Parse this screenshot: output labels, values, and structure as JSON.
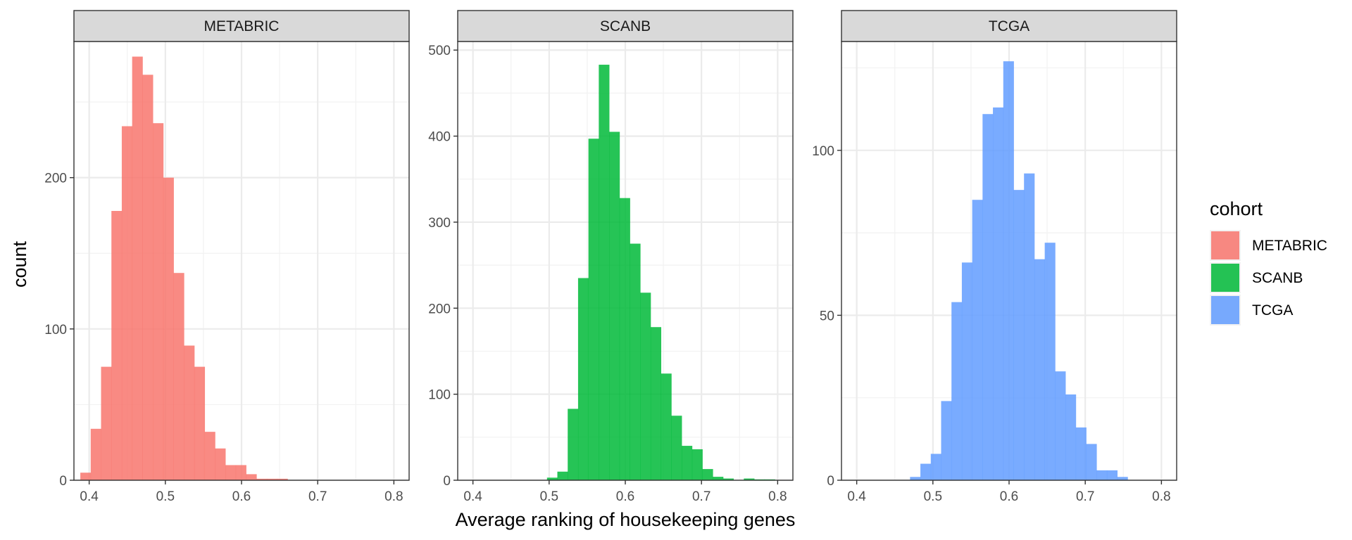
{
  "chart_data": {
    "type": "bar",
    "xlabel": "Average ranking of housekeeping genes",
    "ylabel": "count",
    "xlim": [
      0.38,
      0.82
    ],
    "x_ticks": [
      0.4,
      0.5,
      0.6,
      0.7,
      0.8
    ],
    "x_tick_labels": [
      "0.4",
      "0.5",
      "0.6",
      "0.7",
      "0.8"
    ],
    "bin_width": 0.0136,
    "grid": true,
    "legend": {
      "title": "cohort",
      "position": "right",
      "entries": [
        {
          "label": "METABRIC",
          "color": "#F8766D"
        },
        {
          "label": "SCANB",
          "color": "#00BA38"
        },
        {
          "label": "TCGA",
          "color": "#619CFF"
        }
      ]
    },
    "panels": [
      {
        "name": "METABRIC",
        "color": "#F8766D",
        "ylim": [
          0,
          290
        ],
        "y_ticks": [
          0,
          100,
          200
        ],
        "y_tick_labels": [
          "0",
          "100",
          "200"
        ],
        "bins": [
          {
            "x0": 0.3884,
            "count": 5
          },
          {
            "x0": 0.402,
            "count": 34
          },
          {
            "x0": 0.4156,
            "count": 75
          },
          {
            "x0": 0.4292,
            "count": 178
          },
          {
            "x0": 0.4428,
            "count": 234
          },
          {
            "x0": 0.4564,
            "count": 280
          },
          {
            "x0": 0.47,
            "count": 268
          },
          {
            "x0": 0.4836,
            "count": 236
          },
          {
            "x0": 0.4972,
            "count": 200
          },
          {
            "x0": 0.5108,
            "count": 137
          },
          {
            "x0": 0.5244,
            "count": 89
          },
          {
            "x0": 0.538,
            "count": 75
          },
          {
            "x0": 0.5516,
            "count": 32
          },
          {
            "x0": 0.5652,
            "count": 21
          },
          {
            "x0": 0.5788,
            "count": 10
          },
          {
            "x0": 0.5924,
            "count": 10
          },
          {
            "x0": 0.606,
            "count": 4
          },
          {
            "x0": 0.6196,
            "count": 1
          },
          {
            "x0": 0.6332,
            "count": 1
          },
          {
            "x0": 0.6468,
            "count": 1
          }
        ]
      },
      {
        "name": "SCANB",
        "color": "#00BA38",
        "ylim": [
          0,
          510
        ],
        "y_ticks": [
          0,
          100,
          200,
          300,
          400,
          500
        ],
        "y_tick_labels": [
          "0",
          "100",
          "200",
          "300",
          "400",
          "500"
        ],
        "bins": [
          {
            "x0": 0.4972,
            "count": 3
          },
          {
            "x0": 0.5108,
            "count": 10
          },
          {
            "x0": 0.5244,
            "count": 83
          },
          {
            "x0": 0.538,
            "count": 235
          },
          {
            "x0": 0.5516,
            "count": 397
          },
          {
            "x0": 0.5652,
            "count": 483
          },
          {
            "x0": 0.5788,
            "count": 405
          },
          {
            "x0": 0.5924,
            "count": 328
          },
          {
            "x0": 0.606,
            "count": 275
          },
          {
            "x0": 0.6196,
            "count": 218
          },
          {
            "x0": 0.6332,
            "count": 178
          },
          {
            "x0": 0.6468,
            "count": 124
          },
          {
            "x0": 0.6604,
            "count": 75
          },
          {
            "x0": 0.674,
            "count": 40
          },
          {
            "x0": 0.6876,
            "count": 36
          },
          {
            "x0": 0.7012,
            "count": 13
          },
          {
            "x0": 0.7148,
            "count": 4
          },
          {
            "x0": 0.7284,
            "count": 2
          },
          {
            "x0": 0.742,
            "count": 0
          },
          {
            "x0": 0.7556,
            "count": 2
          },
          {
            "x0": 0.7692,
            "count": 1
          },
          {
            "x0": 0.7828,
            "count": 1
          }
        ]
      },
      {
        "name": "TCGA",
        "color": "#619CFF",
        "ylim": [
          0,
          133
        ],
        "y_ticks": [
          0,
          50,
          100
        ],
        "y_tick_labels": [
          "0",
          "50",
          "100"
        ],
        "bins": [
          {
            "x0": 0.47,
            "count": 1
          },
          {
            "x0": 0.4836,
            "count": 5
          },
          {
            "x0": 0.4972,
            "count": 8
          },
          {
            "x0": 0.5108,
            "count": 24
          },
          {
            "x0": 0.5244,
            "count": 54
          },
          {
            "x0": 0.538,
            "count": 66
          },
          {
            "x0": 0.5516,
            "count": 85
          },
          {
            "x0": 0.5652,
            "count": 111
          },
          {
            "x0": 0.5788,
            "count": 113
          },
          {
            "x0": 0.5924,
            "count": 127
          },
          {
            "x0": 0.606,
            "count": 88
          },
          {
            "x0": 0.6196,
            "count": 93
          },
          {
            "x0": 0.6332,
            "count": 67
          },
          {
            "x0": 0.6468,
            "count": 72
          },
          {
            "x0": 0.6604,
            "count": 33
          },
          {
            "x0": 0.674,
            "count": 26
          },
          {
            "x0": 0.6876,
            "count": 16
          },
          {
            "x0": 0.7012,
            "count": 11
          },
          {
            "x0": 0.7148,
            "count": 3
          },
          {
            "x0": 0.7284,
            "count": 3
          },
          {
            "x0": 0.742,
            "count": 1
          }
        ]
      }
    ]
  }
}
